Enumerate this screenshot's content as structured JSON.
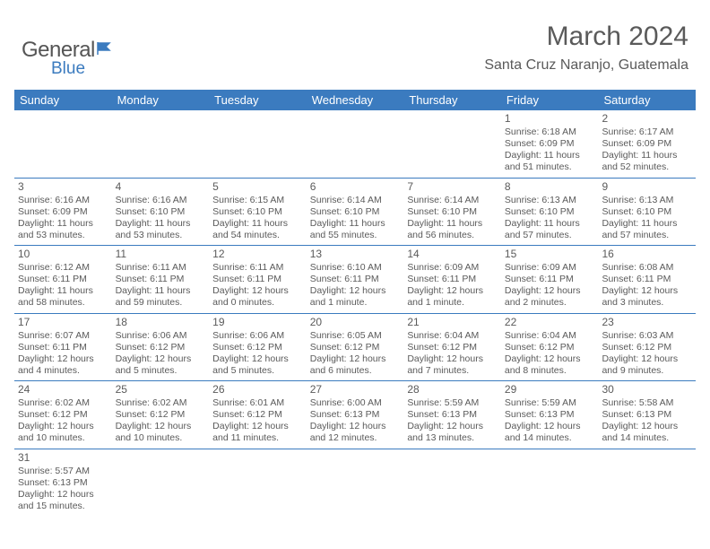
{
  "logo": {
    "general": "General",
    "blue": "Blue"
  },
  "title": "March 2024",
  "location": "Santa Cruz Naranjo, Guatemala",
  "colors": {
    "header_bg": "#3b7bbf",
    "text": "#5a5a5a",
    "border": "#3b7bbf"
  },
  "day_names": [
    "Sunday",
    "Monday",
    "Tuesday",
    "Wednesday",
    "Thursday",
    "Friday",
    "Saturday"
  ],
  "weeks": [
    [
      null,
      null,
      null,
      null,
      null,
      {
        "n": "1",
        "sunrise": "Sunrise: 6:18 AM",
        "sunset": "Sunset: 6:09 PM",
        "daylight": "Daylight: 11 hours and 51 minutes."
      },
      {
        "n": "2",
        "sunrise": "Sunrise: 6:17 AM",
        "sunset": "Sunset: 6:09 PM",
        "daylight": "Daylight: 11 hours and 52 minutes."
      }
    ],
    [
      {
        "n": "3",
        "sunrise": "Sunrise: 6:16 AM",
        "sunset": "Sunset: 6:09 PM",
        "daylight": "Daylight: 11 hours and 53 minutes."
      },
      {
        "n": "4",
        "sunrise": "Sunrise: 6:16 AM",
        "sunset": "Sunset: 6:10 PM",
        "daylight": "Daylight: 11 hours and 53 minutes."
      },
      {
        "n": "5",
        "sunrise": "Sunrise: 6:15 AM",
        "sunset": "Sunset: 6:10 PM",
        "daylight": "Daylight: 11 hours and 54 minutes."
      },
      {
        "n": "6",
        "sunrise": "Sunrise: 6:14 AM",
        "sunset": "Sunset: 6:10 PM",
        "daylight": "Daylight: 11 hours and 55 minutes."
      },
      {
        "n": "7",
        "sunrise": "Sunrise: 6:14 AM",
        "sunset": "Sunset: 6:10 PM",
        "daylight": "Daylight: 11 hours and 56 minutes."
      },
      {
        "n": "8",
        "sunrise": "Sunrise: 6:13 AM",
        "sunset": "Sunset: 6:10 PM",
        "daylight": "Daylight: 11 hours and 57 minutes."
      },
      {
        "n": "9",
        "sunrise": "Sunrise: 6:13 AM",
        "sunset": "Sunset: 6:10 PM",
        "daylight": "Daylight: 11 hours and 57 minutes."
      }
    ],
    [
      {
        "n": "10",
        "sunrise": "Sunrise: 6:12 AM",
        "sunset": "Sunset: 6:11 PM",
        "daylight": "Daylight: 11 hours and 58 minutes."
      },
      {
        "n": "11",
        "sunrise": "Sunrise: 6:11 AM",
        "sunset": "Sunset: 6:11 PM",
        "daylight": "Daylight: 11 hours and 59 minutes."
      },
      {
        "n": "12",
        "sunrise": "Sunrise: 6:11 AM",
        "sunset": "Sunset: 6:11 PM",
        "daylight": "Daylight: 12 hours and 0 minutes."
      },
      {
        "n": "13",
        "sunrise": "Sunrise: 6:10 AM",
        "sunset": "Sunset: 6:11 PM",
        "daylight": "Daylight: 12 hours and 1 minute."
      },
      {
        "n": "14",
        "sunrise": "Sunrise: 6:09 AM",
        "sunset": "Sunset: 6:11 PM",
        "daylight": "Daylight: 12 hours and 1 minute."
      },
      {
        "n": "15",
        "sunrise": "Sunrise: 6:09 AM",
        "sunset": "Sunset: 6:11 PM",
        "daylight": "Daylight: 12 hours and 2 minutes."
      },
      {
        "n": "16",
        "sunrise": "Sunrise: 6:08 AM",
        "sunset": "Sunset: 6:11 PM",
        "daylight": "Daylight: 12 hours and 3 minutes."
      }
    ],
    [
      {
        "n": "17",
        "sunrise": "Sunrise: 6:07 AM",
        "sunset": "Sunset: 6:11 PM",
        "daylight": "Daylight: 12 hours and 4 minutes."
      },
      {
        "n": "18",
        "sunrise": "Sunrise: 6:06 AM",
        "sunset": "Sunset: 6:12 PM",
        "daylight": "Daylight: 12 hours and 5 minutes."
      },
      {
        "n": "19",
        "sunrise": "Sunrise: 6:06 AM",
        "sunset": "Sunset: 6:12 PM",
        "daylight": "Daylight: 12 hours and 5 minutes."
      },
      {
        "n": "20",
        "sunrise": "Sunrise: 6:05 AM",
        "sunset": "Sunset: 6:12 PM",
        "daylight": "Daylight: 12 hours and 6 minutes."
      },
      {
        "n": "21",
        "sunrise": "Sunrise: 6:04 AM",
        "sunset": "Sunset: 6:12 PM",
        "daylight": "Daylight: 12 hours and 7 minutes."
      },
      {
        "n": "22",
        "sunrise": "Sunrise: 6:04 AM",
        "sunset": "Sunset: 6:12 PM",
        "daylight": "Daylight: 12 hours and 8 minutes."
      },
      {
        "n": "23",
        "sunrise": "Sunrise: 6:03 AM",
        "sunset": "Sunset: 6:12 PM",
        "daylight": "Daylight: 12 hours and 9 minutes."
      }
    ],
    [
      {
        "n": "24",
        "sunrise": "Sunrise: 6:02 AM",
        "sunset": "Sunset: 6:12 PM",
        "daylight": "Daylight: 12 hours and 10 minutes."
      },
      {
        "n": "25",
        "sunrise": "Sunrise: 6:02 AM",
        "sunset": "Sunset: 6:12 PM",
        "daylight": "Daylight: 12 hours and 10 minutes."
      },
      {
        "n": "26",
        "sunrise": "Sunrise: 6:01 AM",
        "sunset": "Sunset: 6:12 PM",
        "daylight": "Daylight: 12 hours and 11 minutes."
      },
      {
        "n": "27",
        "sunrise": "Sunrise: 6:00 AM",
        "sunset": "Sunset: 6:13 PM",
        "daylight": "Daylight: 12 hours and 12 minutes."
      },
      {
        "n": "28",
        "sunrise": "Sunrise: 5:59 AM",
        "sunset": "Sunset: 6:13 PM",
        "daylight": "Daylight: 12 hours and 13 minutes."
      },
      {
        "n": "29",
        "sunrise": "Sunrise: 5:59 AM",
        "sunset": "Sunset: 6:13 PM",
        "daylight": "Daylight: 12 hours and 14 minutes."
      },
      {
        "n": "30",
        "sunrise": "Sunrise: 5:58 AM",
        "sunset": "Sunset: 6:13 PM",
        "daylight": "Daylight: 12 hours and 14 minutes."
      }
    ],
    [
      {
        "n": "31",
        "sunrise": "Sunrise: 5:57 AM",
        "sunset": "Sunset: 6:13 PM",
        "daylight": "Daylight: 12 hours and 15 minutes."
      },
      null,
      null,
      null,
      null,
      null,
      null
    ]
  ]
}
